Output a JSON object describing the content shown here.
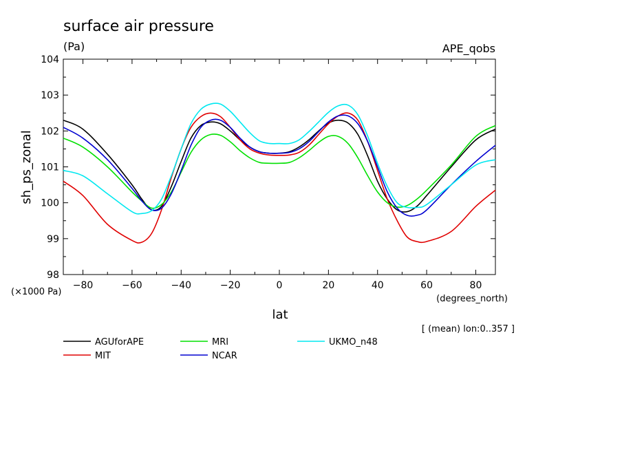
{
  "chart_data": {
    "type": "line",
    "title": "surface air pressure",
    "units": "(Pa)",
    "experiment": "APE_qobs",
    "xlabel": "lat",
    "xunits": "(degrees_north)",
    "ylabel": "sh_ps_zonal",
    "yscale_note": "(×1000 Pa)",
    "annotation": "[ (mean) lon:0..357 ]",
    "xlim": [
      -88,
      88
    ],
    "ylim": [
      98,
      104
    ],
    "xticks": [
      -80,
      -60,
      -40,
      -20,
      0,
      20,
      40,
      60,
      80
    ],
    "yticks": [
      98,
      99,
      100,
      101,
      102,
      103,
      104
    ],
    "grid": false,
    "legend_position": "bottom",
    "x": [
      -88,
      -80,
      -70,
      -60,
      -56,
      -52,
      -48,
      -44,
      -40,
      -36,
      -32,
      -28,
      -24,
      -20,
      -16,
      -12,
      -8,
      -4,
      0,
      4,
      8,
      12,
      16,
      20,
      24,
      28,
      32,
      36,
      40,
      44,
      48,
      52,
      56,
      60,
      70,
      80,
      88
    ],
    "series": [
      {
        "name": "AGUforAPE",
        "color": "#000000",
        "values": [
          102.3,
          102.05,
          101.35,
          100.5,
          100.1,
          99.8,
          99.9,
          100.45,
          101.15,
          101.8,
          102.15,
          102.25,
          102.2,
          102.0,
          101.75,
          101.55,
          101.42,
          101.38,
          101.38,
          101.42,
          101.55,
          101.75,
          102.0,
          102.22,
          102.3,
          102.22,
          101.9,
          101.3,
          100.6,
          100.1,
          99.8,
          99.75,
          99.9,
          100.2,
          101.0,
          101.75,
          102.05
        ]
      },
      {
        "name": "MIT",
        "color": "#e00000",
        "values": [
          100.6,
          100.2,
          99.4,
          98.95,
          98.9,
          99.15,
          99.8,
          100.7,
          101.5,
          102.1,
          102.4,
          102.5,
          102.4,
          102.1,
          101.75,
          101.5,
          101.38,
          101.33,
          101.32,
          101.33,
          101.4,
          101.6,
          101.9,
          102.2,
          102.42,
          102.5,
          102.3,
          101.7,
          100.9,
          100.1,
          99.5,
          99.05,
          98.92,
          98.92,
          99.2,
          99.9,
          100.35
        ]
      },
      {
        "name": "MRI",
        "color": "#00e000",
        "values": [
          101.8,
          101.55,
          101.0,
          100.3,
          100.05,
          99.85,
          99.95,
          100.3,
          100.85,
          101.4,
          101.75,
          101.9,
          101.88,
          101.7,
          101.45,
          101.25,
          101.12,
          101.1,
          101.1,
          101.12,
          101.25,
          101.45,
          101.68,
          101.85,
          101.85,
          101.65,
          101.25,
          100.75,
          100.3,
          100.0,
          99.88,
          99.92,
          100.1,
          100.35,
          101.05,
          101.85,
          102.15
        ]
      },
      {
        "name": "NCAR",
        "color": "#0000d0",
        "values": [
          102.1,
          101.8,
          101.2,
          100.4,
          100.05,
          99.8,
          99.85,
          100.25,
          100.9,
          101.6,
          102.1,
          102.3,
          102.3,
          102.1,
          101.8,
          101.55,
          101.42,
          101.38,
          101.38,
          101.4,
          101.5,
          101.7,
          101.98,
          102.25,
          102.42,
          102.42,
          102.2,
          101.7,
          101.0,
          100.3,
          99.85,
          99.65,
          99.65,
          99.8,
          100.5,
          101.15,
          101.6
        ]
      },
      {
        "name": "UKMO_n48",
        "color": "#00e8f0",
        "values": [
          100.9,
          100.75,
          100.25,
          99.75,
          99.7,
          99.78,
          100.1,
          100.75,
          101.5,
          102.2,
          102.6,
          102.75,
          102.75,
          102.55,
          102.25,
          101.95,
          101.72,
          101.65,
          101.65,
          101.65,
          101.75,
          101.98,
          102.25,
          102.52,
          102.7,
          102.72,
          102.45,
          101.85,
          101.1,
          100.45,
          100.0,
          99.87,
          99.87,
          99.95,
          100.5,
          101.05,
          101.2
        ]
      }
    ]
  }
}
